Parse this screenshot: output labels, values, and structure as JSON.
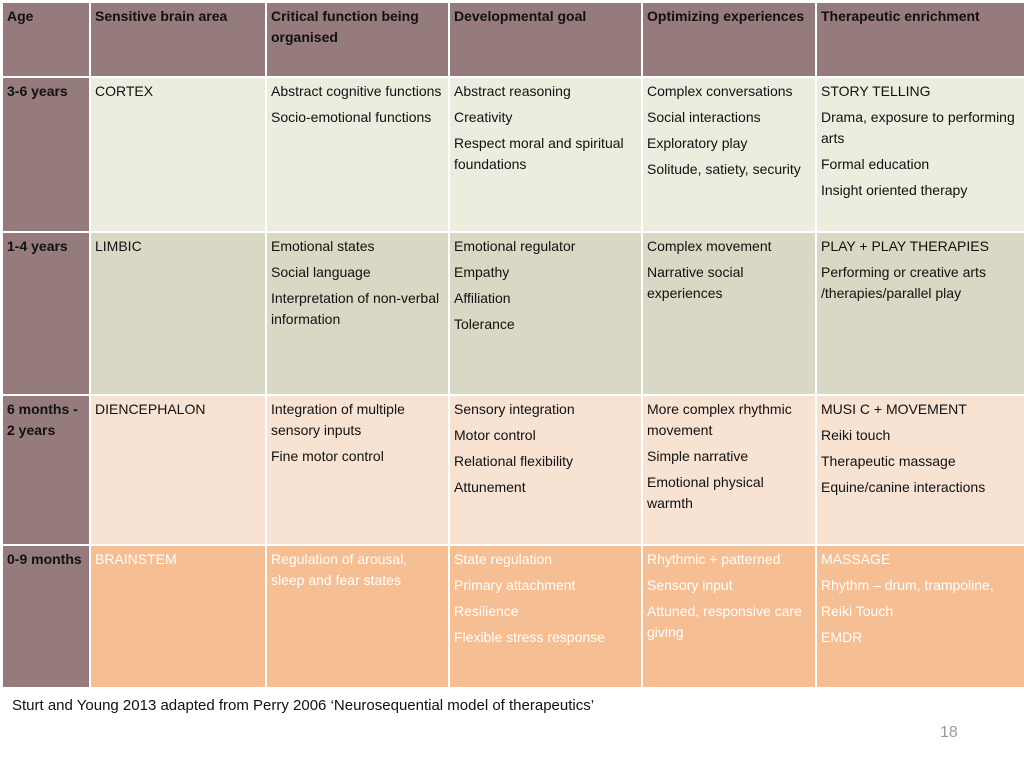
{
  "header": {
    "age": "Age",
    "sensitive": "Sensitive brain area",
    "critical": "Critical function being organised",
    "goal": "Developmental goal",
    "optimizing": "Optimizing experiences",
    "enrichment": "Therapeutic enrichment"
  },
  "rows": {
    "cortex": {
      "age": "3-6 years",
      "area": "CORTEX",
      "critical": [
        "Abstract cognitive functions",
        "Socio-emotional functions"
      ],
      "goal": [
        "Abstract reasoning",
        "Creativity",
        "Respect moral and spiritual foundations"
      ],
      "optimizing": [
        "Complex conversations",
        "Social interactions",
        "Exploratory play",
        "Solitude, satiety, security"
      ],
      "enrichment": [
        "STORY TELLING",
        "Drama, exposure to performing arts",
        "Formal education",
        "Insight oriented therapy"
      ]
    },
    "limbic": {
      "age": "1-4 years",
      "area": "LIMBIC",
      "critical": [
        "Emotional states",
        "Social language",
        "Interpretation of non-verbal information"
      ],
      "goal": [
        "Emotional regulator",
        "Empathy",
        "Affiliation",
        "Tolerance"
      ],
      "optimizing": [
        "Complex movement",
        "Narrative social experiences"
      ],
      "enrichment": [
        "PLAY + PLAY THERAPIES",
        "Performing or creative arts /therapies/parallel play"
      ]
    },
    "dien": {
      "age": "6 months - 2 years",
      "area": "DIENCEPHALON",
      "critical": [
        "Integration of multiple sensory inputs",
        "Fine motor control"
      ],
      "goal": [
        "Sensory integration",
        "Motor control",
        "Relational flexibility",
        "Attunement"
      ],
      "optimizing": [
        "More complex rhythmic movement",
        "Simple narrative",
        "Emotional physical warmth"
      ],
      "enrichment": [
        "MUSI C + MOVEMENT",
        "Reiki touch",
        "Therapeutic massage",
        "Equine/canine interactions"
      ]
    },
    "brain": {
      "age": "0-9 months",
      "area": "BRAINSTEM",
      "critical": [
        "Regulation of arousal, sleep and fear states"
      ],
      "goal": [
        "State regulation",
        "Primary attachment",
        "Resilience",
        "Flexible stress response"
      ],
      "optimizing": [
        "Rhythmic + patterned",
        "Sensory input",
        "Attuned, responsive care giving"
      ],
      "enrichment": [
        "MASSAGE",
        "Rhythm – drum, trampoline,",
        "Reiki Touch",
        "EMDR"
      ]
    }
  },
  "caption": "Sturt and Young 2013 adapted from Perry 2006 ‘Neurosequential model of therapeutics’",
  "page_number": "18"
}
